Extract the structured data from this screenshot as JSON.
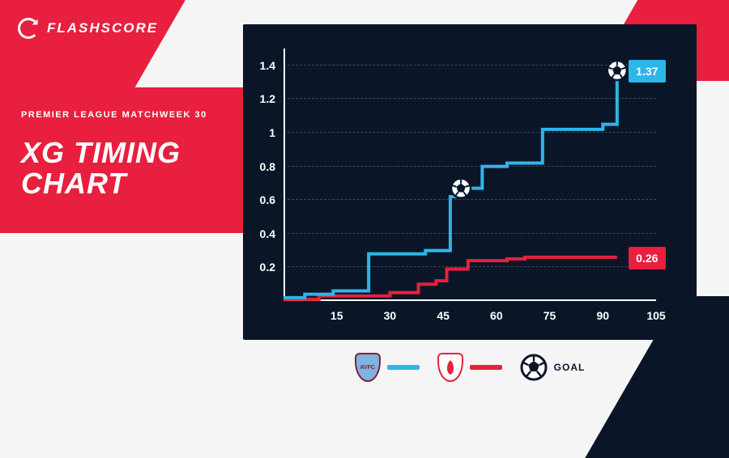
{
  "brand": {
    "name": "FLASHSCORE"
  },
  "header": {
    "subtitle": "PREMIER LEAGUE MATCHWEEK 30",
    "title": "XG TIMING CHART"
  },
  "chart": {
    "type": "step-line",
    "background_color": "#0a1628",
    "axis_color": "#ffffff",
    "grid_color": "rgba(150,160,180,0.35)",
    "tick_fontsize": 14,
    "tick_color": "#ffffff",
    "xlim": [
      0,
      105
    ],
    "x_ticks": [
      15,
      30,
      45,
      60,
      75,
      90,
      105
    ],
    "ylim": [
      0,
      1.5
    ],
    "y_ticks": [
      0.2,
      0.4,
      0.6,
      0.8,
      1.0,
      1.2,
      1.4
    ],
    "line_width": 4,
    "series": {
      "team_a": {
        "name": "Aston Villa",
        "abbrev": "AVFC",
        "color": "#2db6e8",
        "crest_bg": "#8b1a3a",
        "crest_accent": "#7db4e0",
        "final_value": "1.37",
        "points": [
          [
            0,
            0.02
          ],
          [
            6,
            0.02
          ],
          [
            6,
            0.04
          ],
          [
            14,
            0.04
          ],
          [
            14,
            0.06
          ],
          [
            24,
            0.06
          ],
          [
            24,
            0.28
          ],
          [
            40,
            0.28
          ],
          [
            40,
            0.3
          ],
          [
            47,
            0.3
          ],
          [
            47,
            0.62
          ],
          [
            50,
            0.62
          ],
          [
            50,
            0.67
          ],
          [
            56,
            0.67
          ],
          [
            56,
            0.8
          ],
          [
            63,
            0.8
          ],
          [
            63,
            0.82
          ],
          [
            73,
            0.82
          ],
          [
            73,
            1.02
          ],
          [
            90,
            1.02
          ],
          [
            90,
            1.05
          ],
          [
            94,
            1.05
          ],
          [
            94,
            1.37
          ]
        ],
        "goals": [
          {
            "minute": 50,
            "xg": 0.67
          },
          {
            "minute": 94,
            "xg": 1.37
          }
        ]
      },
      "team_b": {
        "name": "Nottingham Forest",
        "abbrev": "NFFC",
        "color": "#e81f3e",
        "crest_bg": "#e81f3e",
        "final_value": "0.26",
        "points": [
          [
            0,
            0.01
          ],
          [
            10,
            0.01
          ],
          [
            10,
            0.03
          ],
          [
            30,
            0.03
          ],
          [
            30,
            0.05
          ],
          [
            38,
            0.05
          ],
          [
            38,
            0.1
          ],
          [
            43,
            0.1
          ],
          [
            43,
            0.12
          ],
          [
            46,
            0.12
          ],
          [
            46,
            0.19
          ],
          [
            52,
            0.19
          ],
          [
            52,
            0.24
          ],
          [
            63,
            0.24
          ],
          [
            63,
            0.25
          ],
          [
            68,
            0.25
          ],
          [
            68,
            0.26
          ],
          [
            94,
            0.26
          ]
        ],
        "goals": []
      }
    }
  },
  "legend": {
    "goal_label": "GOAL"
  }
}
